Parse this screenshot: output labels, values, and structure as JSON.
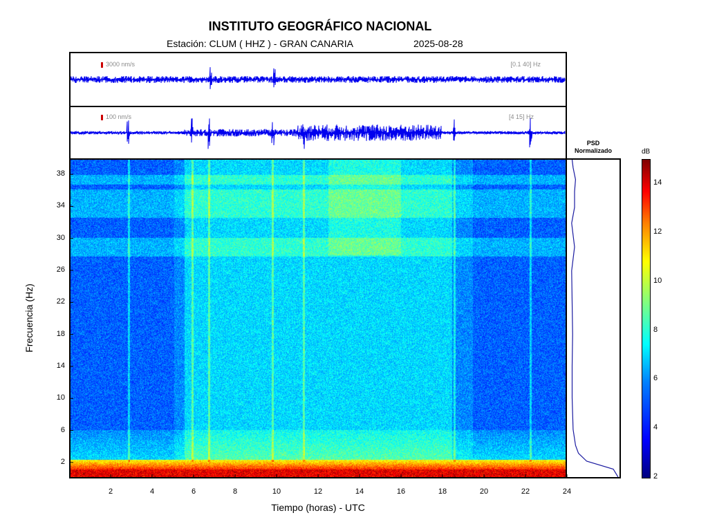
{
  "title": "INSTITUTO GEOGRÁFICO NACIONAL",
  "station": "Estación:  CLUM ( HHZ ) - GRAN CANARIA",
  "date": "2025-08-28",
  "traces": [
    {
      "scale": "3000 nm/s",
      "band": "[0.1 40] Hz"
    },
    {
      "scale": "100 nm/s",
      "band": "[4 15] Hz"
    }
  ],
  "psd": {
    "title_line1": "PSD",
    "title_line2": "Normalizado"
  },
  "colorbar": {
    "unit": "dB",
    "ticks": [
      "14",
      "12",
      "10",
      "8",
      "6",
      "4",
      "2"
    ],
    "range": [
      2,
      15
    ]
  },
  "colors": {
    "trace": "#0000ee",
    "scale_tick": "#cc0000",
    "axis": "#000000"
  },
  "chart_data": {
    "type": "heatmap",
    "title": "INSTITUTO GEOGRÁFICO NACIONAL",
    "xlabel": "Tiempo (horas) - UTC",
    "ylabel": "Frecuencia  (Hz)",
    "xlim": [
      0,
      24
    ],
    "ylim": [
      0,
      40
    ],
    "x_ticks": [
      "2",
      "4",
      "6",
      "8",
      "10",
      "12",
      "14",
      "16",
      "18",
      "20",
      "22",
      "24"
    ],
    "y_ticks": [
      "38",
      "34",
      "30",
      "26",
      "22",
      "18",
      "14",
      "10",
      "6",
      "2"
    ],
    "x_tick_values": [
      2,
      4,
      6,
      8,
      10,
      12,
      14,
      16,
      18,
      20,
      22,
      24
    ],
    "y_tick_values": [
      38,
      34,
      30,
      26,
      22,
      18,
      14,
      10,
      6,
      2
    ],
    "events_hours": [
      2.8,
      5.9,
      6.7,
      9.8,
      11.3,
      18.6,
      22.3
    ],
    "psd_curve": {
      "frequency_hz": [
        0,
        1,
        2,
        3,
        4,
        6,
        8,
        10,
        14,
        18,
        22,
        26,
        29,
        30,
        32,
        34,
        36,
        37.5,
        39,
        40
      ],
      "normalized_psd": [
        1.0,
        0.9,
        0.35,
        0.18,
        0.12,
        0.07,
        0.06,
        0.05,
        0.05,
        0.06,
        0.05,
        0.04,
        0.1,
        0.08,
        0.04,
        0.1,
        0.1,
        0.12,
        0.07,
        0.05
      ]
    }
  }
}
